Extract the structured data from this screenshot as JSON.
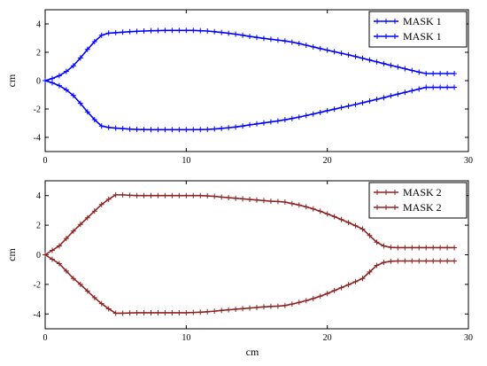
{
  "figure": {
    "xlabel": "cm"
  },
  "chart_data": [
    {
      "type": "line",
      "ylabel": "cm",
      "xlim": [
        0,
        30
      ],
      "ylim": [
        -5,
        5
      ],
      "xticks": [
        0,
        10,
        20,
        30
      ],
      "yticks": [
        -4,
        -2,
        0,
        2,
        4
      ],
      "xtick_labels": [
        "0",
        "10",
        "20",
        "30"
      ],
      "ytick_labels": [
        "-4",
        "-2",
        "0",
        "2",
        "4"
      ],
      "grid": false,
      "legend_position": "top-right",
      "marker": "plus",
      "series": [
        {
          "name": "MASK 1",
          "color": "#0000ff",
          "x": [
            0,
            0.5,
            1,
            1.5,
            2,
            2.5,
            3,
            3.5,
            4,
            4.5,
            5,
            5.5,
            6,
            6.5,
            7,
            7.5,
            8,
            8.5,
            9,
            9.5,
            10,
            10.5,
            11,
            11.5,
            12,
            12.5,
            13,
            13.5,
            14,
            14.5,
            15,
            15.5,
            16,
            16.5,
            17,
            17.5,
            18,
            18.5,
            19,
            19.5,
            20,
            20.5,
            21,
            21.5,
            22,
            22.5,
            23,
            23.5,
            24,
            24.5,
            25,
            25.5,
            26,
            26.5,
            27,
            27.5,
            28,
            28.5,
            29
          ],
          "y": [
            0,
            0.15,
            0.35,
            0.65,
            1.05,
            1.6,
            2.2,
            2.75,
            3.2,
            3.35,
            3.38,
            3.42,
            3.45,
            3.48,
            3.5,
            3.52,
            3.53,
            3.54,
            3.54,
            3.54,
            3.54,
            3.54,
            3.52,
            3.5,
            3.45,
            3.4,
            3.34,
            3.28,
            3.2,
            3.12,
            3.05,
            2.98,
            2.92,
            2.86,
            2.8,
            2.72,
            2.62,
            2.5,
            2.38,
            2.26,
            2.15,
            2.04,
            1.93,
            1.82,
            1.7,
            1.58,
            1.45,
            1.33,
            1.2,
            1.08,
            0.96,
            0.84,
            0.72,
            0.6,
            0.5,
            0.5,
            0.5,
            0.5,
            0.5
          ]
        },
        {
          "name": "MASK 1",
          "color": "#0000ff",
          "x": [
            0,
            0.5,
            1,
            1.5,
            2,
            2.5,
            3,
            3.5,
            4,
            4.5,
            5,
            5.5,
            6,
            6.5,
            7,
            7.5,
            8,
            8.5,
            9,
            9.5,
            10,
            10.5,
            11,
            11.5,
            12,
            12.5,
            13,
            13.5,
            14,
            14.5,
            15,
            15.5,
            16,
            16.5,
            17,
            17.5,
            18,
            18.5,
            19,
            19.5,
            20,
            20.5,
            21,
            21.5,
            22,
            22.5,
            23,
            23.5,
            24,
            24.5,
            25,
            25.5,
            26,
            26.5,
            27,
            27.5,
            28,
            28.5,
            29
          ],
          "y": [
            0,
            -0.15,
            -0.35,
            -0.65,
            -1.05,
            -1.6,
            -2.2,
            -2.75,
            -3.2,
            -3.3,
            -3.35,
            -3.38,
            -3.42,
            -3.44,
            -3.45,
            -3.46,
            -3.46,
            -3.46,
            -3.46,
            -3.46,
            -3.46,
            -3.46,
            -3.45,
            -3.44,
            -3.41,
            -3.37,
            -3.32,
            -3.27,
            -3.2,
            -3.12,
            -3.05,
            -2.98,
            -2.91,
            -2.84,
            -2.76,
            -2.67,
            -2.57,
            -2.46,
            -2.35,
            -2.24,
            -2.12,
            -2.01,
            -1.9,
            -1.79,
            -1.68,
            -1.56,
            -1.44,
            -1.32,
            -1.2,
            -1.07,
            -0.95,
            -0.83,
            -0.71,
            -0.59,
            -0.47,
            -0.47,
            -0.47,
            -0.47,
            -0.47
          ]
        }
      ]
    },
    {
      "type": "line",
      "ylabel": "cm",
      "xlim": [
        0,
        30
      ],
      "ylim": [
        -5,
        5
      ],
      "xticks": [
        0,
        10,
        20,
        30
      ],
      "yticks": [
        -4,
        -2,
        0,
        2,
        4
      ],
      "xtick_labels": [
        "0",
        "10",
        "20",
        "30"
      ],
      "ytick_labels": [
        "-4",
        "-2",
        "0",
        "2",
        "4"
      ],
      "grid": false,
      "legend_position": "top-right",
      "marker": "plus",
      "series": [
        {
          "name": "MASK 2",
          "color": "#8b2323",
          "x": [
            0,
            0.5,
            1,
            1.5,
            2,
            2.5,
            3,
            3.5,
            4,
            4.5,
            5,
            5.5,
            6,
            6.5,
            7,
            7.5,
            8,
            8.5,
            9,
            9.5,
            10,
            10.5,
            11,
            11.5,
            12,
            12.5,
            13,
            13.5,
            14,
            14.5,
            15,
            15.5,
            16,
            16.5,
            17,
            17.5,
            18,
            18.5,
            19,
            19.5,
            20,
            20.5,
            21,
            21.5,
            22,
            22.5,
            23,
            23.5,
            24,
            24.5,
            25,
            25.5,
            26,
            26.5,
            27,
            27.5,
            28,
            28.5,
            29
          ],
          "y": [
            0,
            0.3,
            0.6,
            1.1,
            1.6,
            2.05,
            2.5,
            2.95,
            3.4,
            3.75,
            4.05,
            4.05,
            4.02,
            4.0,
            4.0,
            4.0,
            4.0,
            4.0,
            4.0,
            4.0,
            4.0,
            4.0,
            4.0,
            3.98,
            3.95,
            3.9,
            3.86,
            3.82,
            3.78,
            3.74,
            3.7,
            3.66,
            3.62,
            3.6,
            3.56,
            3.46,
            3.36,
            3.24,
            3.1,
            2.94,
            2.76,
            2.58,
            2.38,
            2.18,
            1.96,
            1.74,
            1.3,
            0.85,
            0.6,
            0.5,
            0.48,
            0.48,
            0.48,
            0.48,
            0.48,
            0.48,
            0.48,
            0.48,
            0.48
          ]
        },
        {
          "name": "MASK 2",
          "color": "#8b2323",
          "x": [
            0,
            0.5,
            1,
            1.5,
            2,
            2.5,
            3,
            3.5,
            4,
            4.5,
            5,
            5.5,
            6,
            6.5,
            7,
            7.5,
            8,
            8.5,
            9,
            9.5,
            10,
            10.5,
            11,
            11.5,
            12,
            12.5,
            13,
            13.5,
            14,
            14.5,
            15,
            15.5,
            16,
            16.5,
            17,
            17.5,
            18,
            18.5,
            19,
            19.5,
            20,
            20.5,
            21,
            21.5,
            22,
            22.5,
            23,
            23.5,
            24,
            24.5,
            25,
            25.5,
            26,
            26.5,
            27,
            27.5,
            28,
            28.5,
            29
          ],
          "y": [
            0,
            -0.3,
            -0.6,
            -1.1,
            -1.6,
            -2.0,
            -2.45,
            -2.9,
            -3.3,
            -3.65,
            -3.95,
            -3.95,
            -3.93,
            -3.92,
            -3.92,
            -3.92,
            -3.92,
            -3.92,
            -3.92,
            -3.92,
            -3.92,
            -3.9,
            -3.88,
            -3.85,
            -3.81,
            -3.76,
            -3.72,
            -3.68,
            -3.64,
            -3.6,
            -3.56,
            -3.52,
            -3.49,
            -3.47,
            -3.43,
            -3.33,
            -3.22,
            -3.1,
            -2.96,
            -2.8,
            -2.62,
            -2.42,
            -2.22,
            -2.02,
            -1.82,
            -1.6,
            -1.16,
            -0.72,
            -0.52,
            -0.44,
            -0.42,
            -0.42,
            -0.42,
            -0.42,
            -0.42,
            -0.42,
            -0.42,
            -0.42,
            -0.42
          ]
        }
      ]
    }
  ]
}
